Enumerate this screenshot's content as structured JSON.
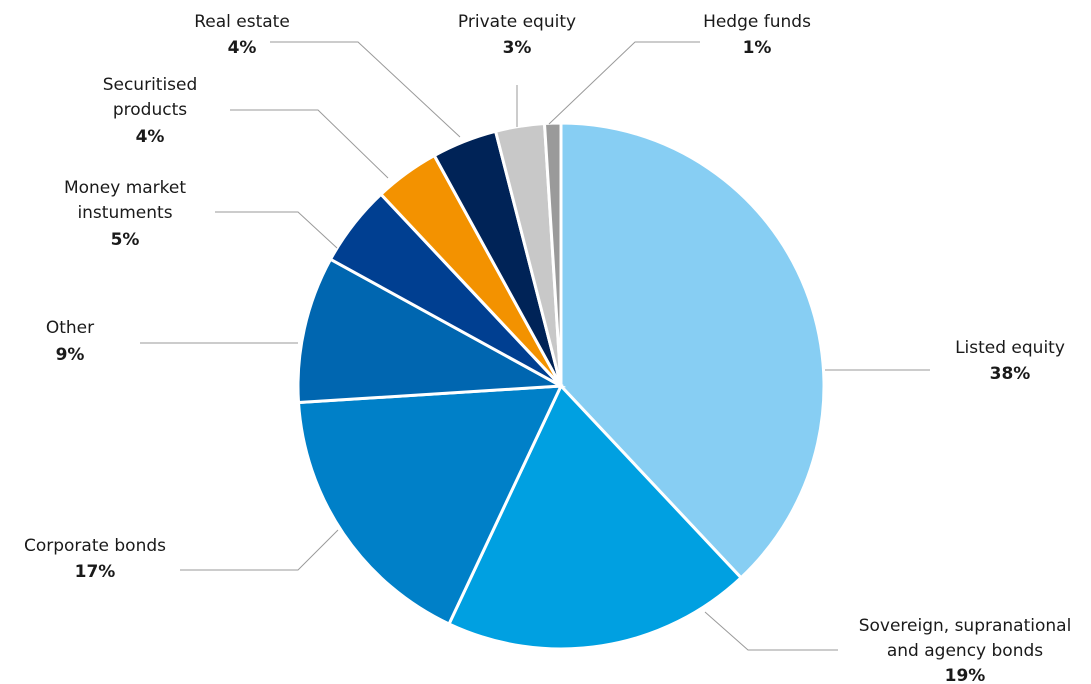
{
  "chart_data": {
    "type": "pie",
    "categories": [
      "Listed equity",
      "Sovereign, supranational\nand agency bonds",
      "Corporate bonds",
      "Other",
      "Money market\ninstuments",
      "Securitised\nproducts",
      "Real estate",
      "Private equity",
      "Hedge funds"
    ],
    "values": [
      38,
      19,
      17,
      9,
      5,
      4,
      4,
      3,
      1
    ],
    "value_labels": [
      "38%",
      "19%",
      "17%",
      "9%",
      "5%",
      "4%",
      "4%",
      "3%",
      "1%"
    ],
    "colors": [
      "#87cef3",
      "#00a0e1",
      "#0080c8",
      "#0066b0",
      "#003f91",
      "#f39200",
      "#002357",
      "#c8c8c8",
      "#9a9a9a"
    ]
  }
}
